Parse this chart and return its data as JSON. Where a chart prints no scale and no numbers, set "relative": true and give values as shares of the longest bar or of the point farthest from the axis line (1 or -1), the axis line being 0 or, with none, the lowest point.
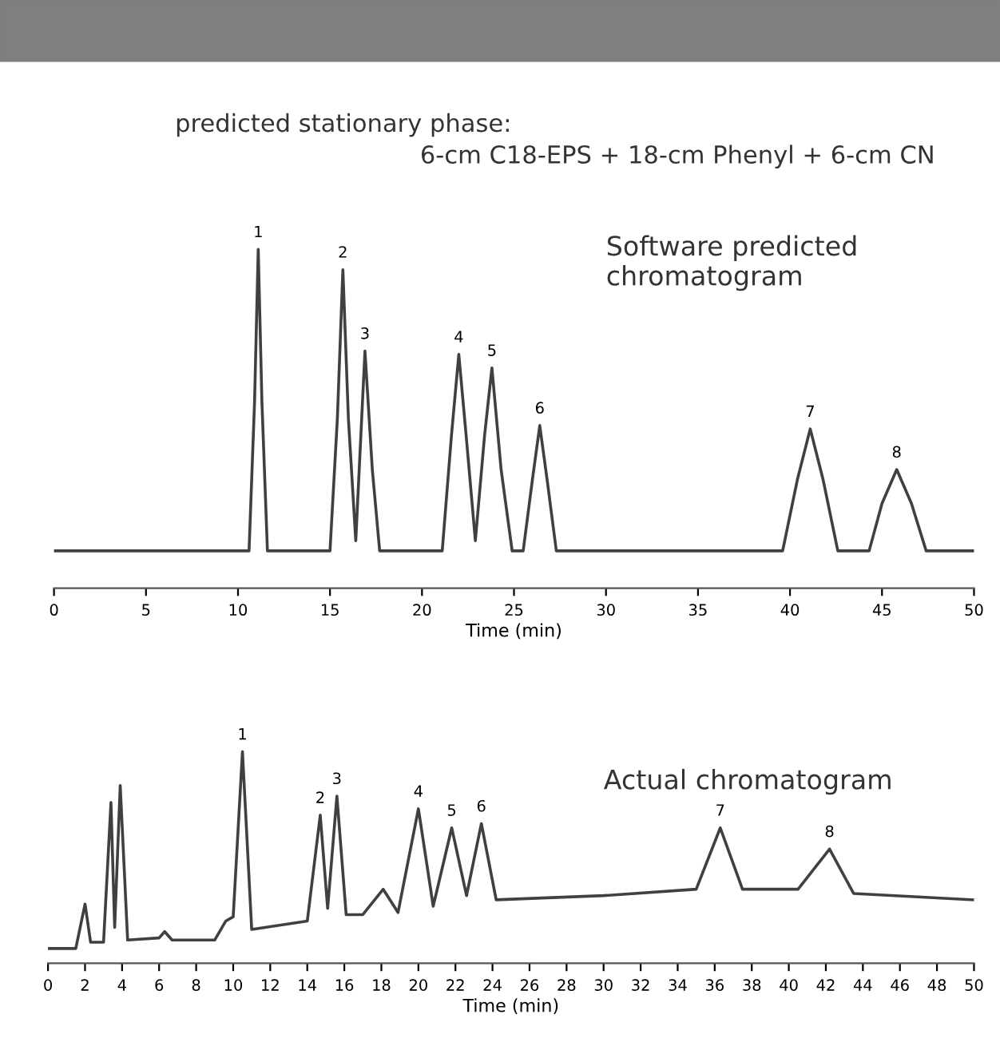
{
  "chart_data": [
    {
      "type": "line",
      "title": "predicted stationary phase:",
      "subtitle": "6-cm C18-EPS + 18-cm Phenyl + 6-cm CN",
      "xlabel": "Time (min)",
      "relative": true,
      "xlim": [
        0,
        50
      ],
      "xticks": [
        0,
        5,
        10,
        15,
        20,
        25,
        30,
        35,
        40,
        45,
        50
      ],
      "tick_labels": "x",
      "grid": false,
      "legend": false,
      "series": [
        {
          "color": "#404040",
          "x": [
            0,
            10.6,
            10.9,
            11.1,
            11.3,
            11.6,
            15.0,
            15.4,
            15.7,
            16.0,
            16.4,
            16.9,
            17.3,
            17.7,
            21.1,
            21.6,
            22.0,
            22.4,
            22.9,
            23.4,
            23.8,
            24.3,
            24.9,
            25.5,
            26.0,
            26.4,
            26.8,
            27.3,
            39.6,
            40.4,
            41.1,
            41.8,
            42.6,
            44.3,
            45.0,
            45.8,
            46.6,
            47.4,
            50
          ],
          "values": [
            0.11,
            0.11,
            0.55,
            1.0,
            0.55,
            0.11,
            0.11,
            0.5,
            0.94,
            0.5,
            0.14,
            0.7,
            0.35,
            0.11,
            0.11,
            0.45,
            0.69,
            0.45,
            0.14,
            0.45,
            0.65,
            0.35,
            0.11,
            0.11,
            0.32,
            0.48,
            0.32,
            0.11,
            0.11,
            0.32,
            0.47,
            0.32,
            0.11,
            0.11,
            0.25,
            0.35,
            0.25,
            0.11,
            0.11
          ]
        }
      ],
      "annotations": [
        "Software predicted\nchromatogram",
        {
          "text": "1",
          "x": 11.1,
          "y": 1.0
        },
        {
          "text": "2",
          "x": 15.7,
          "y": 0.94
        },
        {
          "text": "3",
          "x": 16.9,
          "y": 0.7
        },
        {
          "text": "4",
          "x": 22.0,
          "y": 0.69
        },
        {
          "text": "5",
          "x": 23.8,
          "y": 0.65
        },
        {
          "text": "6",
          "x": 26.4,
          "y": 0.48
        },
        {
          "text": "7",
          "x": 41.1,
          "y": 0.47
        },
        {
          "text": "8",
          "x": 45.8,
          "y": 0.35
        }
      ]
    },
    {
      "type": "line",
      "xlabel": "Time (min)",
      "relative": true,
      "xlim": [
        0,
        50
      ],
      "xticks": [
        0,
        2,
        4,
        6,
        8,
        10,
        12,
        14,
        16,
        18,
        20,
        22,
        24,
        26,
        28,
        30,
        32,
        34,
        36,
        38,
        40,
        42,
        44,
        46,
        48,
        50
      ],
      "tick_labels": "x",
      "grid": false,
      "legend": false,
      "series": [
        {
          "color": "#404040",
          "x": [
            0,
            1.5,
            2.0,
            2.3,
            3.0,
            3.4,
            3.6,
            3.9,
            4.3,
            6.0,
            6.3,
            6.7,
            9.0,
            9.6,
            10.0,
            10.5,
            11.0,
            14.0,
            14.7,
            15.1,
            15.6,
            16.1,
            17.0,
            18.1,
            18.9,
            20.0,
            20.8,
            21.8,
            22.6,
            23.4,
            24.2,
            30,
            35,
            36.3,
            37.5,
            40.5,
            42.2,
            43.5,
            50
          ],
          "values": [
            0.07,
            0.07,
            0.28,
            0.1,
            0.1,
            0.76,
            0.17,
            0.84,
            0.11,
            0.12,
            0.15,
            0.11,
            0.11,
            0.2,
            0.22,
            1.0,
            0.16,
            0.2,
            0.7,
            0.26,
            0.79,
            0.23,
            0.23,
            0.35,
            0.24,
            0.73,
            0.27,
            0.64,
            0.32,
            0.66,
            0.3,
            0.32,
            0.35,
            0.64,
            0.35,
            0.35,
            0.54,
            0.33,
            0.3
          ]
        }
      ],
      "annotations": [
        "Actual chromatogram",
        {
          "text": "1",
          "x": 10.5,
          "y": 1.0
        },
        {
          "text": "2",
          "x": 14.7,
          "y": 0.7
        },
        {
          "text": "3",
          "x": 15.6,
          "y": 0.79
        },
        {
          "text": "4",
          "x": 20.0,
          "y": 0.73
        },
        {
          "text": "5",
          "x": 21.8,
          "y": 0.64
        },
        {
          "text": "6",
          "x": 23.4,
          "y": 0.66
        },
        {
          "text": "7",
          "x": 36.3,
          "y": 0.64
        },
        {
          "text": "8",
          "x": 42.2,
          "y": 0.54
        }
      ]
    }
  ]
}
